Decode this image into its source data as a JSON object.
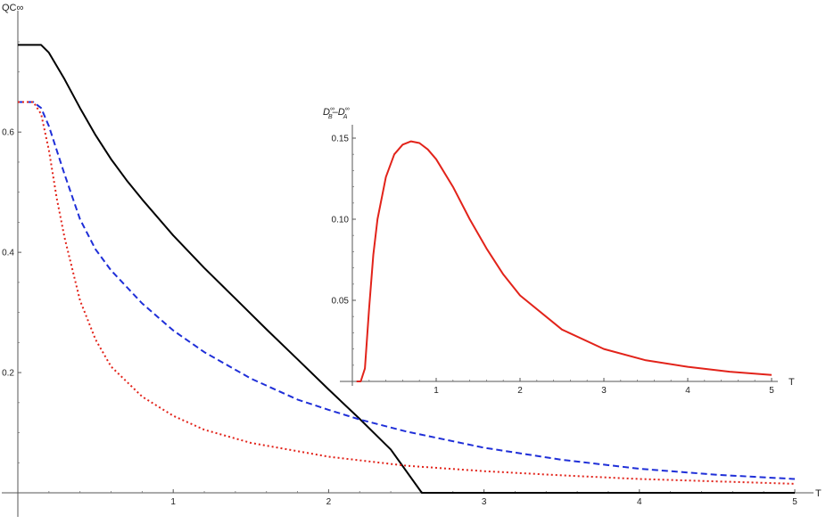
{
  "chart_data": [
    {
      "type": "line",
      "title": "",
      "xlabel": "T",
      "ylabel": "QC∞",
      "xlim": [
        0,
        5
      ],
      "ylim": [
        0,
        0.75
      ],
      "x_ticks": [
        1,
        2,
        3,
        4,
        5
      ],
      "x_tick_labels": [
        "1",
        "2",
        "3",
        "4",
        "5"
      ],
      "y_ticks": [
        0.2,
        0.4,
        0.6
      ],
      "y_tick_labels": [
        "0.2",
        "0.4",
        "0.6"
      ],
      "grid": false,
      "legend": "none",
      "series": [
        {
          "color": "#000000",
          "style": "solid",
          "x": [
            0,
            0.15,
            0.2,
            0.3,
            0.4,
            0.5,
            0.6,
            0.7,
            0.8,
            1.0,
            1.2,
            1.4,
            1.6,
            1.8,
            2.0,
            2.2,
            2.4,
            2.6,
            3.0,
            3.5,
            4.0,
            4.5,
            5.0
          ],
          "values": [
            0.745,
            0.745,
            0.732,
            0.688,
            0.64,
            0.595,
            0.555,
            0.52,
            0.488,
            0.428,
            0.374,
            0.323,
            0.272,
            0.222,
            0.172,
            0.123,
            0.072,
            0.0,
            0.0,
            0.0,
            0.0,
            0.0,
            0.0
          ]
        },
        {
          "color": "#1f2fd8",
          "style": "dashed",
          "x": [
            0,
            0.1,
            0.15,
            0.2,
            0.3,
            0.4,
            0.5,
            0.6,
            0.8,
            1.0,
            1.2,
            1.5,
            1.8,
            2.0,
            2.2,
            2.5,
            3.0,
            3.5,
            4.0,
            4.5,
            5.0
          ],
          "values": [
            0.65,
            0.65,
            0.64,
            0.61,
            0.53,
            0.455,
            0.405,
            0.37,
            0.315,
            0.27,
            0.234,
            0.19,
            0.155,
            0.138,
            0.122,
            0.102,
            0.075,
            0.055,
            0.04,
            0.03,
            0.023
          ]
        },
        {
          "color": "#e2231a",
          "style": "dotted",
          "x": [
            0,
            0.1,
            0.15,
            0.2,
            0.25,
            0.3,
            0.4,
            0.5,
            0.6,
            0.8,
            1.0,
            1.2,
            1.5,
            2.0,
            2.5,
            3.0,
            3.5,
            4.0,
            4.5,
            5.0
          ],
          "values": [
            0.65,
            0.65,
            0.63,
            0.57,
            0.49,
            0.425,
            0.32,
            0.255,
            0.21,
            0.16,
            0.128,
            0.105,
            0.083,
            0.06,
            0.045,
            0.036,
            0.029,
            0.023,
            0.019,
            0.015
          ]
        }
      ]
    },
    {
      "type": "line",
      "title": "",
      "xlabel": "T",
      "ylabel_parts": {
        "lead": "D",
        "lead_sup": "∞",
        "lead_sub": "B",
        "mid": "–D",
        "tail_sup": "∞",
        "tail_sub": "A"
      },
      "xlim": [
        0,
        5
      ],
      "ylim": [
        0,
        0.15
      ],
      "x_ticks": [
        1,
        2,
        3,
        4,
        5
      ],
      "x_tick_labels": [
        "1",
        "2",
        "3",
        "4",
        "5"
      ],
      "y_ticks": [
        0.05,
        0.1,
        0.15
      ],
      "y_tick_labels": [
        "0.05",
        "0.10",
        "0.15"
      ],
      "grid": false,
      "legend": "none",
      "series": [
        {
          "color": "#e2231a",
          "style": "solid",
          "x": [
            0.05,
            0.1,
            0.15,
            0.2,
            0.25,
            0.3,
            0.4,
            0.5,
            0.6,
            0.7,
            0.8,
            0.9,
            1.0,
            1.2,
            1.4,
            1.6,
            1.8,
            2.0,
            2.5,
            3.0,
            3.5,
            4.0,
            4.5,
            5.0
          ],
          "values": [
            0.0,
            0.0,
            0.008,
            0.045,
            0.078,
            0.1,
            0.126,
            0.14,
            0.146,
            0.148,
            0.147,
            0.143,
            0.137,
            0.12,
            0.1,
            0.082,
            0.066,
            0.053,
            0.032,
            0.02,
            0.013,
            0.009,
            0.006,
            0.004
          ]
        }
      ]
    }
  ]
}
